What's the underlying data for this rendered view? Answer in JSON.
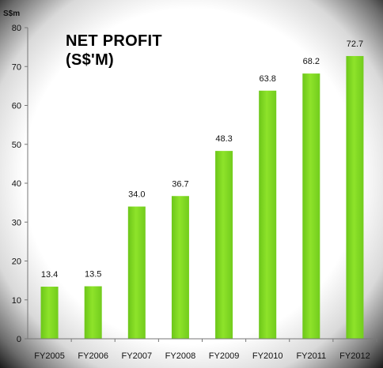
{
  "chart_data": {
    "type": "bar",
    "title": "NET PROFIT",
    "subtitle": "(S$'M)",
    "ylabel": "S$m",
    "xlabel": "",
    "categories": [
      "FY2005",
      "FY2006",
      "FY2007",
      "FY2008",
      "FY2009",
      "FY2010",
      "FY2011",
      "FY2012"
    ],
    "values": [
      13.4,
      13.5,
      34.0,
      36.7,
      48.3,
      63.8,
      68.2,
      72.7
    ],
    "value_labels": [
      "13.4",
      "13.5",
      "34.0",
      "36.7",
      "48.3",
      "63.8",
      "68.2",
      "72.7"
    ],
    "ylim": [
      0,
      80
    ],
    "yticks": [
      0,
      10,
      20,
      30,
      40,
      50,
      60,
      70,
      80
    ],
    "grid": false,
    "legend": "none",
    "bar_color": "#7ed321"
  }
}
